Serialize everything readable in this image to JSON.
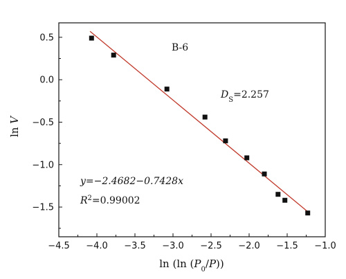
{
  "chart_data": {
    "type": "scatter",
    "title": "",
    "xlabel_parts": [
      "ln (ln (",
      "P",
      "0",
      "/",
      "P",
      "))"
    ],
    "ylabel_parts": [
      "ln ",
      "V"
    ],
    "xlim": [
      -4.5,
      -1.0
    ],
    "ylim": [
      -1.85,
      0.67
    ],
    "x_ticks": [
      -4.5,
      -4.0,
      -3.5,
      -3.0,
      -2.5,
      -2.0,
      -1.5,
      -1.0
    ],
    "x_tick_labels": [
      "−4.5",
      "−4.0",
      "−3.5",
      "−3.0",
      "−2.5",
      "−2.0",
      "−1.5",
      "−1.0"
    ],
    "y_ticks": [
      0.5,
      0.0,
      -0.5,
      -1.0,
      -1.5
    ],
    "y_tick_labels": [
      "0.5",
      "0.0",
      "−0.5",
      "−1.0",
      "−1.5"
    ],
    "grid": false,
    "points": [
      {
        "x": -4.07,
        "y": 0.49
      },
      {
        "x": -3.78,
        "y": 0.29
      },
      {
        "x": -3.08,
        "y": -0.11
      },
      {
        "x": -2.58,
        "y": -0.44
      },
      {
        "x": -2.31,
        "y": -0.72
      },
      {
        "x": -2.03,
        "y": -0.92
      },
      {
        "x": -1.8,
        "y": -1.11
      },
      {
        "x": -1.62,
        "y": -1.35
      },
      {
        "x": -1.53,
        "y": -1.42
      },
      {
        "x": -1.23,
        "y": -1.57
      }
    ],
    "fit_line": {
      "intercept": -2.4682,
      "slope": -0.7428,
      "x_range": [
        -4.09,
        -1.24
      ],
      "color": "#c0392b"
    },
    "marker_color": "#111111",
    "annotations": {
      "sample_label": "B-6",
      "ds_parts": [
        "D",
        "S",
        "=2.257"
      ],
      "equation": "y=−2.4682−0.7428x",
      "r2_parts": [
        "R",
        "2",
        "=0.99002"
      ]
    }
  }
}
